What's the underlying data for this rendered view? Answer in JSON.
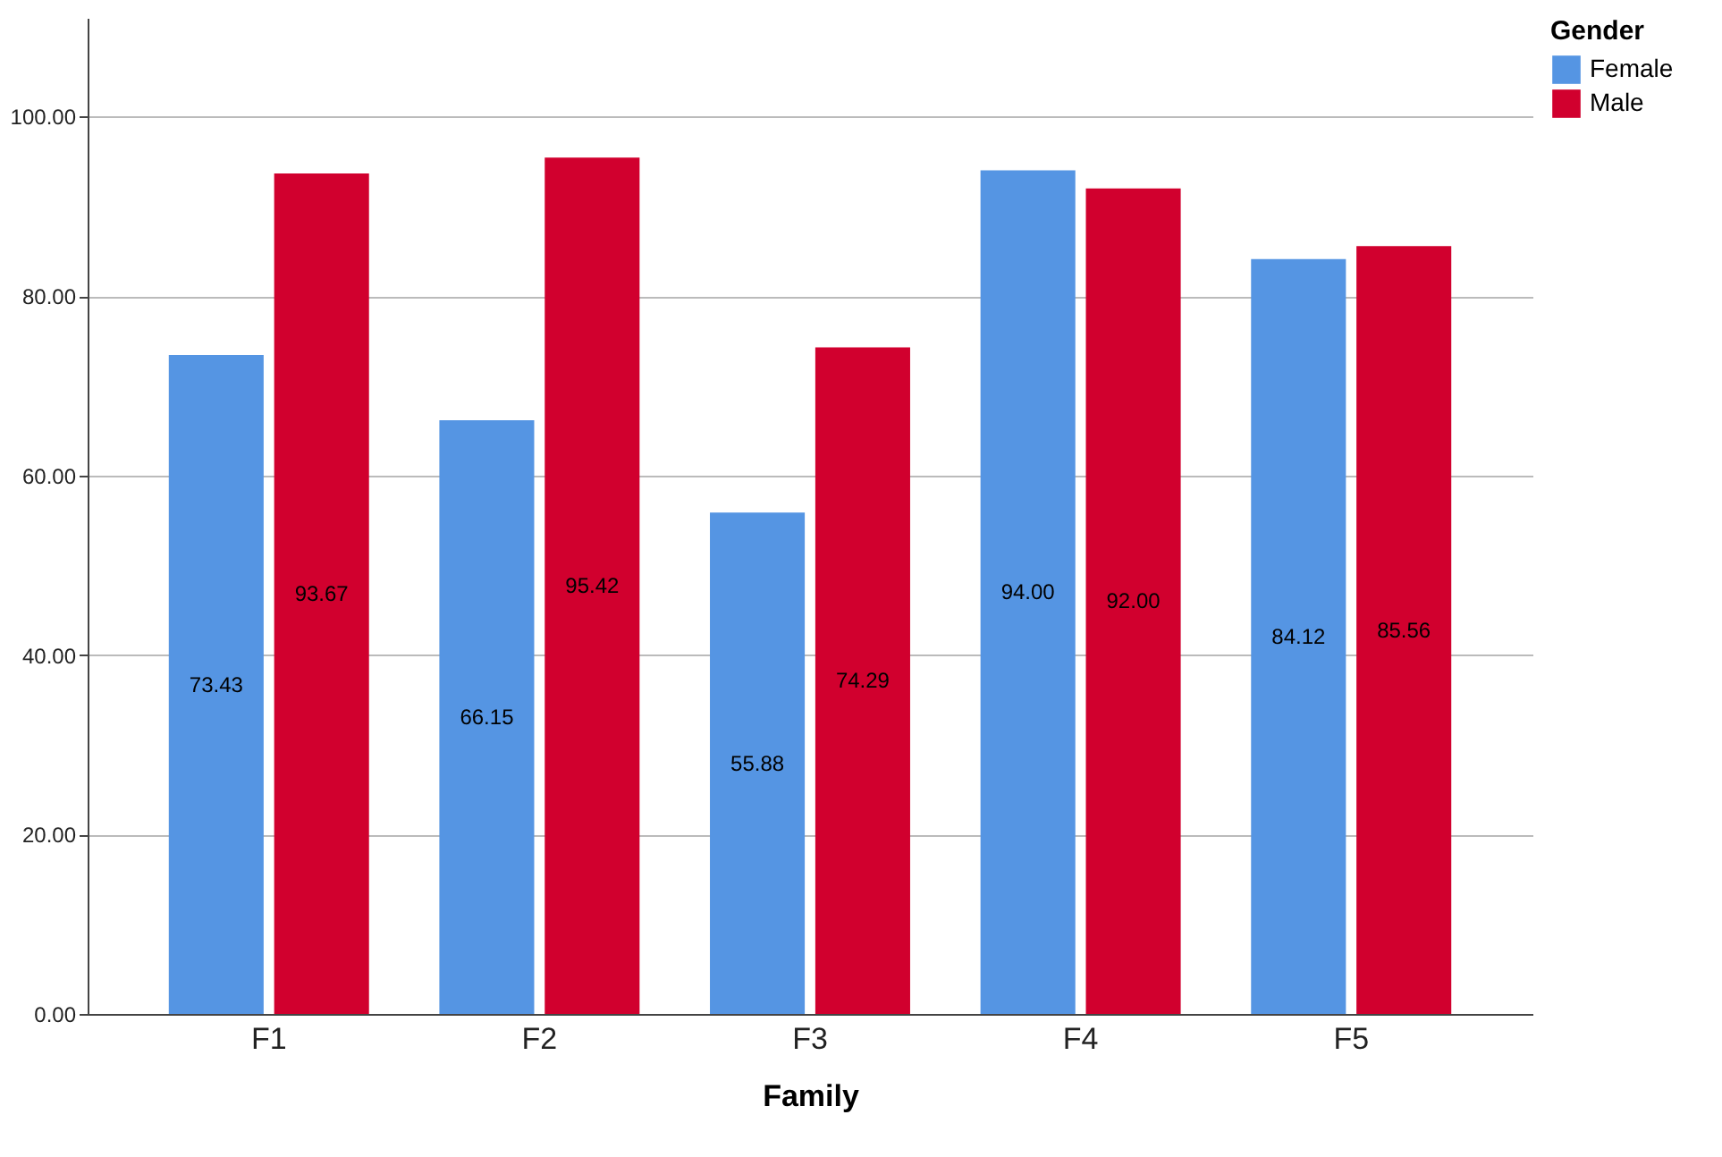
{
  "chart_data": {
    "type": "bar",
    "xlabel": "Family",
    "legend_title": "Gender",
    "categories": [
      "F1",
      "F2",
      "F3",
      "F4",
      "F5"
    ],
    "series": [
      {
        "name": "Female",
        "color": "#5595e3",
        "values": [
          73.43,
          66.15,
          55.88,
          94.0,
          84.12
        ],
        "value_labels": [
          "73.43",
          "66.15",
          "55.88",
          "94.00",
          "84.12"
        ]
      },
      {
        "name": "Male",
        "color": "#d1002e",
        "values": [
          93.67,
          95.42,
          74.29,
          92.0,
          85.56
        ],
        "value_labels": [
          "93.67",
          "95.42",
          "74.29",
          "92.00",
          "85.56"
        ]
      }
    ],
    "ylim": [
      0,
      111
    ],
    "yticks": [
      {
        "value": 0,
        "label": "0.00"
      },
      {
        "value": 20,
        "label": "20.00"
      },
      {
        "value": 40,
        "label": "40.00"
      },
      {
        "value": 60,
        "label": "60.00"
      },
      {
        "value": 80,
        "label": "80.00"
      },
      {
        "value": 100,
        "label": "100.00"
      }
    ],
    "grid": "y",
    "legend": "top right"
  }
}
